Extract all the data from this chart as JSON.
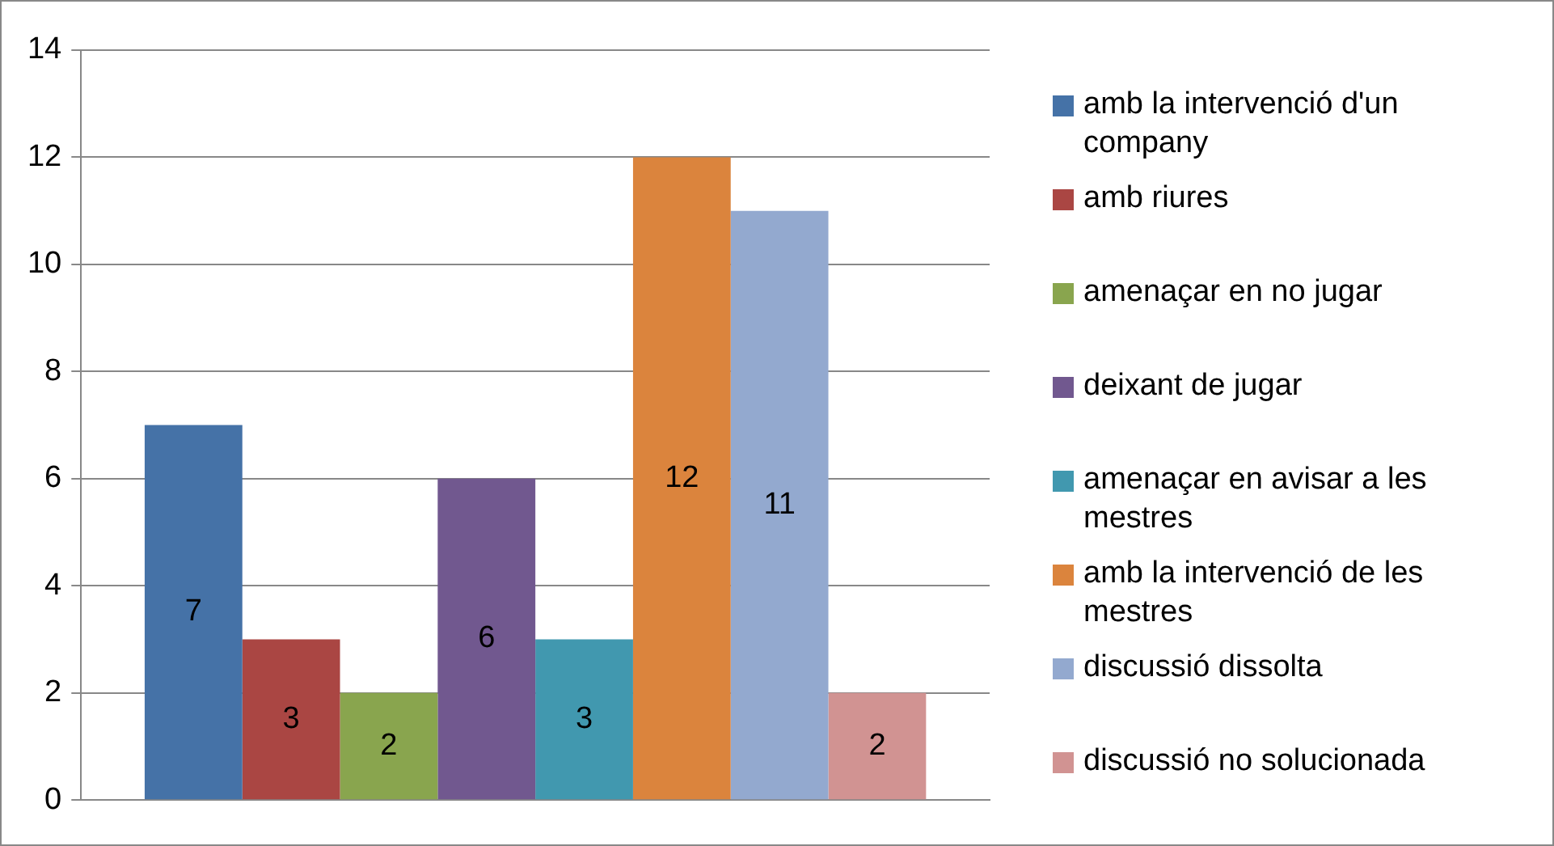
{
  "chart_data": {
    "type": "bar",
    "categories": [
      null
    ],
    "series": [
      {
        "name": "amb la intervenció d'un company",
        "color": "#4572a7",
        "values": [
          7
        ]
      },
      {
        "name": " amb riures",
        "color": "#aa4643",
        "values": [
          3
        ]
      },
      {
        "name": "amenaçar en no jugar",
        "color": "#89a54e",
        "values": [
          2
        ]
      },
      {
        "name": "deixant de jugar",
        "color": "#71588f",
        "values": [
          6
        ]
      },
      {
        "name": "amenaçar en avisar a les mestres",
        "color": "#4198af",
        "values": [
          3
        ]
      },
      {
        "name": "amb la intervenció de les mestres",
        "color": "#db843d",
        "values": [
          12
        ]
      },
      {
        "name": "discussió dissolta",
        "color": "#93a9cf",
        "values": [
          11
        ]
      },
      {
        "name": "discussió no solucionada",
        "color": "#d19392",
        "values": [
          2
        ]
      }
    ],
    "ylim": [
      0,
      14
    ],
    "yticks": [
      0,
      2,
      4,
      6,
      8,
      10,
      12,
      14
    ],
    "grid": "y",
    "legend": "right",
    "data_labels": true
  }
}
